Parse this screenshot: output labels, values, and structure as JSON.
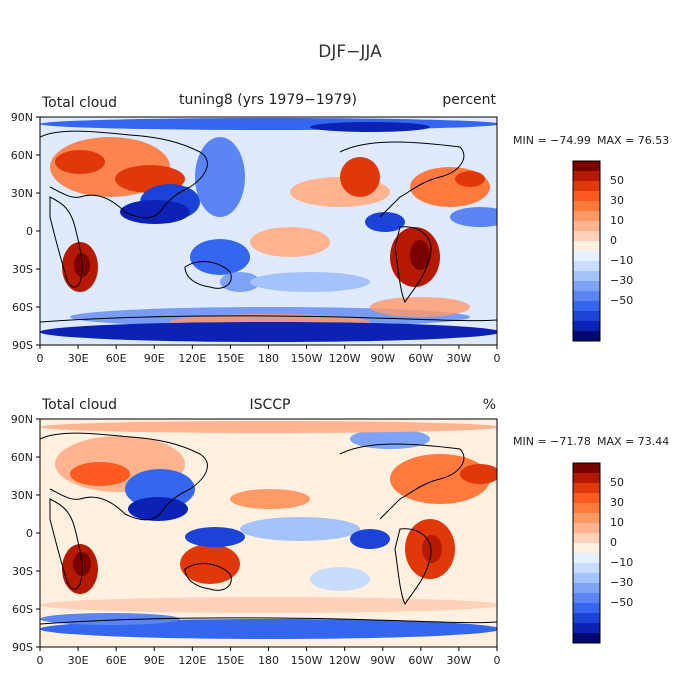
{
  "figure": {
    "title": "DJF−JJA"
  },
  "axes": {
    "x_ticks": [
      "0",
      "30E",
      "60E",
      "90E",
      "120E",
      "150E",
      "180",
      "150W",
      "120W",
      "90W",
      "60W",
      "30W",
      "0"
    ],
    "y_ticks": [
      "90N",
      "60N",
      "30N",
      "0",
      "30S",
      "60S",
      "90S"
    ]
  },
  "colorbar": {
    "labels": [
      "50",
      "30",
      "10",
      "0",
      "−10",
      "−30",
      "−50"
    ],
    "colors": [
      "#7a0000",
      "#b51a00",
      "#e0380a",
      "#ff5a1f",
      "#ff7a3c",
      "#ff9966",
      "#ffb38f",
      "#ffd1b8",
      "#fff0e0",
      "#e6f1ff",
      "#c7dcff",
      "#a4c2fb",
      "#7ea3f6",
      "#5a85f2",
      "#3466ee",
      "#1c43d8",
      "#0b22b4",
      "#02096e"
    ]
  },
  "panels": [
    {
      "left_label": "Total cloud",
      "center_label": "tuning8 (yrs 1979−1979)",
      "right_label": "percent",
      "min_label": "MIN = −74.99",
      "max_label": "MAX =  76.53",
      "min": -74.99,
      "max": 76.53
    },
    {
      "left_label": "Total cloud",
      "center_label": "ISCCP",
      "right_label": "%",
      "min_label": "MIN = −71.78",
      "max_label": "MAX =  73.44",
      "min": -71.78,
      "max": 73.44
    }
  ]
}
